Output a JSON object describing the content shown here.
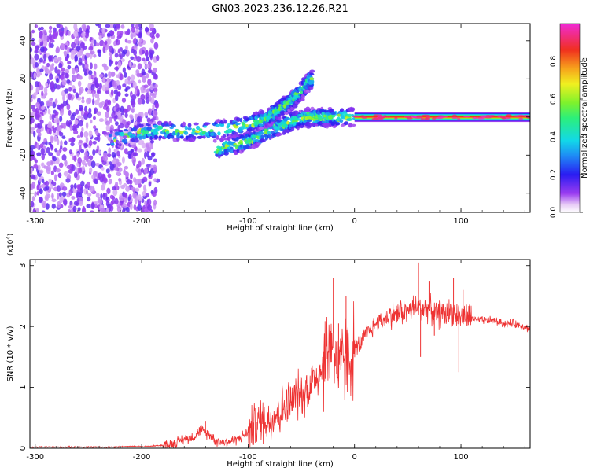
{
  "title": "GN03.2023.236.12.26.R21",
  "colors": {
    "background": "#ffffff",
    "snr_line": "#ee3333",
    "frame": "#000000",
    "scatter_sparse": "#7b2cf0",
    "scatter_light": "#c9a8f5"
  },
  "chart_data": [
    {
      "type": "heatmap",
      "name": "spectrogram",
      "xlabel": "Height of straight line (km)",
      "ylabel": "Frequency (Hz)",
      "xlim": [
        -305,
        165
      ],
      "ylim": [
        -50,
        49
      ],
      "x_ticks": [
        {
          "value": -300,
          "label": "-300"
        },
        {
          "value": -200,
          "label": "-200"
        },
        {
          "value": -100,
          "label": "-100"
        },
        {
          "value": 0,
          "label": "0"
        },
        {
          "value": 100,
          "label": "100"
        }
      ],
      "y_ticks": [
        {
          "value": -40,
          "label": "-40"
        },
        {
          "value": -20,
          "label": "-20"
        },
        {
          "value": 0,
          "label": "0"
        },
        {
          "value": 20,
          "label": "20"
        },
        {
          "value": 40,
          "label": "40"
        }
      ],
      "noise_region": {
        "x_from": -305,
        "x_to": -185
      },
      "ridges": [
        {
          "name": "main-ridge",
          "points": [
            [
              -230,
              -12
            ],
            [
              -200,
              -8
            ],
            [
              -180,
              -7
            ],
            [
              -160,
              -8
            ],
            [
              -140,
              -7
            ],
            [
              -120,
              -6
            ],
            [
              -100,
              -4
            ],
            [
              -85,
              -2
            ],
            [
              -70,
              -2
            ],
            [
              -50,
              -1
            ],
            [
              -30,
              -1
            ],
            [
              -15,
              0
            ],
            [
              0,
              0
            ]
          ]
        },
        {
          "name": "lower-branch",
          "points": [
            [
              -130,
              -17
            ],
            [
              -115,
              -15
            ],
            [
              -100,
              -13
            ],
            [
              -90,
              -10
            ],
            [
              -75,
              -6
            ],
            [
              -60,
              -3
            ],
            [
              -45,
              0
            ],
            [
              -30,
              0
            ],
            [
              -20,
              0
            ]
          ]
        },
        {
          "name": "upper-branch",
          "points": [
            [
              -95,
              -3
            ],
            [
              -80,
              0
            ],
            [
              -70,
              4
            ],
            [
              -60,
              8
            ],
            [
              -52,
              12
            ],
            [
              -45,
              17
            ],
            [
              -40,
              20
            ]
          ]
        }
      ],
      "flat_band": {
        "x_from": 0,
        "x_to": 165,
        "freq": 0
      },
      "colorbar": {
        "label": "Normalized spectral amplitude",
        "range": [
          0,
          1
        ],
        "ticks": [
          {
            "value": 0.0,
            "label": "0.0"
          },
          {
            "value": 0.2,
            "label": "0.2"
          },
          {
            "value": 0.4,
            "label": "0.4"
          },
          {
            "value": 0.6,
            "label": "0.6"
          },
          {
            "value": 0.8,
            "label": "0.8"
          }
        ],
        "stops": [
          {
            "value": 0.0,
            "color": "#ffffff"
          },
          {
            "value": 0.04,
            "color": "#e8ccf6"
          },
          {
            "value": 0.1,
            "color": "#9a3cf0"
          },
          {
            "value": 0.2,
            "color": "#2a1cf2"
          },
          {
            "value": 0.3,
            "color": "#1e8cf5"
          },
          {
            "value": 0.38,
            "color": "#12d8e8"
          },
          {
            "value": 0.5,
            "color": "#2cf07a"
          },
          {
            "value": 0.58,
            "color": "#7ef22c"
          },
          {
            "value": 0.68,
            "color": "#f0f020"
          },
          {
            "value": 0.76,
            "color": "#f7a51c"
          },
          {
            "value": 0.86,
            "color": "#f0301e"
          },
          {
            "value": 1.0,
            "color": "#f02ad6"
          }
        ]
      }
    },
    {
      "type": "line",
      "name": "snr",
      "xlabel": "Height of straight line (km)",
      "ylabel": "SNR (10 * v/v)",
      "y_multiplier": "(x10",
      "y_multiplier_exp": "4",
      "y_multiplier_close": ")",
      "xlim": [
        -305,
        165
      ],
      "ylim": [
        0,
        3.1
      ],
      "x_ticks": [
        {
          "value": -300,
          "label": "-300"
        },
        {
          "value": -200,
          "label": "-200"
        },
        {
          "value": -100,
          "label": "-100"
        },
        {
          "value": 0,
          "label": "0"
        },
        {
          "value": 100,
          "label": "100"
        }
      ],
      "y_ticks": [
        {
          "value": 0,
          "label": "0"
        },
        {
          "value": 1,
          "label": "1"
        },
        {
          "value": 2,
          "label": "2"
        },
        {
          "value": 3,
          "label": "3"
        }
      ],
      "series": [
        {
          "x": [
            -305,
            -290,
            -270,
            -250,
            -230,
            -210,
            -195,
            -180,
            -170,
            -160,
            -150,
            -145,
            -140,
            -135,
            -130,
            -125,
            -120,
            -115,
            -110,
            -105,
            -100,
            -95,
            -90,
            -85,
            -80,
            -75,
            -70,
            -65,
            -60,
            -55,
            -50,
            -45,
            -40,
            -35,
            -30,
            -25,
            -20,
            -15,
            -10,
            -5,
            0,
            5,
            10,
            15,
            20,
            25,
            30,
            35,
            40,
            45,
            50,
            55,
            60,
            65,
            70,
            75,
            80,
            85,
            90,
            95,
            100,
            105,
            110,
            115,
            120,
            130,
            140,
            150,
            160,
            165
          ],
          "y": [
            0.02,
            0.02,
            0.02,
            0.02,
            0.02,
            0.03,
            0.03,
            0.05,
            0.08,
            0.15,
            0.2,
            0.3,
            0.25,
            0.22,
            0.12,
            0.1,
            0.1,
            0.12,
            0.15,
            0.2,
            0.25,
            0.35,
            0.4,
            0.5,
            0.45,
            0.55,
            0.6,
            0.7,
            0.75,
            0.85,
            0.9,
            0.95,
            1.1,
            1.2,
            1.35,
            1.6,
            1.9,
            1.1,
            1.5,
            1.45,
            1.65,
            1.7,
            1.85,
            1.95,
            2.05,
            2.1,
            2.15,
            2.2,
            2.2,
            2.25,
            2.25,
            2.3,
            2.3,
            2.3,
            2.3,
            2.2,
            2.2,
            2.2,
            2.25,
            2.2,
            2.15,
            2.15,
            2.15,
            2.1,
            2.1,
            2.1,
            2.05,
            2.05,
            2.0,
            1.95
          ]
        }
      ],
      "spikes": [
        {
          "x": -140,
          "y": 0.45
        },
        {
          "x": -60,
          "y": 1.0
        },
        {
          "x": -45,
          "y": 1.2
        },
        {
          "x": -30,
          "y": 1.5
        },
        {
          "x": -20,
          "y": 2.8
        },
        {
          "x": -15,
          "y": 2.05
        },
        {
          "x": -8,
          "y": 2.5
        },
        {
          "x": 60,
          "y": 3.05
        },
        {
          "x": 70,
          "y": 2.75
        },
        {
          "x": 93,
          "y": 2.8
        },
        {
          "x": 102,
          "y": 2.6
        }
      ],
      "dips": [
        {
          "x": 62,
          "y": 1.5
        },
        {
          "x": 75,
          "y": 1.85
        },
        {
          "x": 98,
          "y": 1.25
        }
      ]
    }
  ]
}
